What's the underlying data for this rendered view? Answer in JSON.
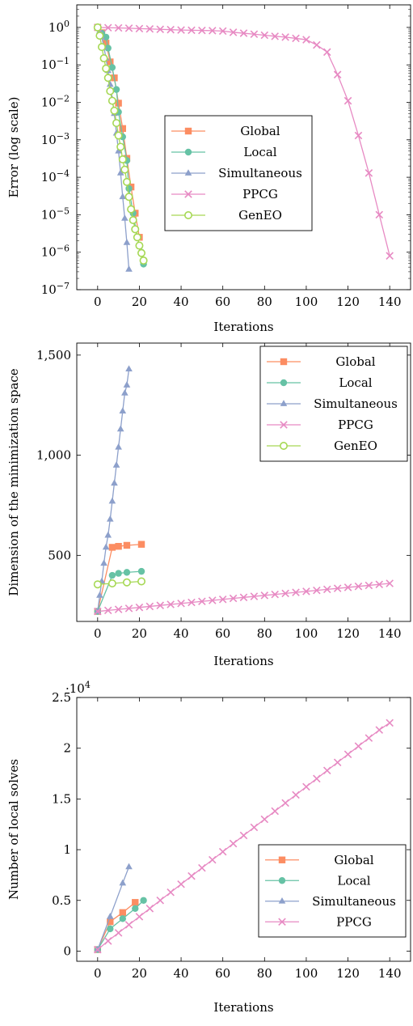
{
  "colors": {
    "global": "#fc8d62",
    "local": "#66c2a5",
    "simultaneous": "#8da0cb",
    "ppcg": "#e78ac3",
    "geneo": "#a6d854"
  },
  "chart_data": [
    {
      "type": "line",
      "yscale": "log",
      "xlabel": "Iterations",
      "ylabel": "Error (log scale)",
      "xlim": [
        -10,
        150
      ],
      "ylim": [
        1e-07,
        4
      ],
      "xticks": [
        0,
        20,
        40,
        60,
        80,
        100,
        120,
        140
      ],
      "xtick_labels": [
        "0",
        "20",
        "40",
        "60",
        "80",
        "100",
        "120",
        "140"
      ],
      "yticks": [
        1,
        0.1,
        0.01,
        0.001,
        0.0001,
        1e-05,
        1e-06,
        1e-07
      ],
      "ytick_base": "10",
      "ytick_exponents": [
        "0",
        "−1",
        "−2",
        "−3",
        "−4",
        "−5",
        "−6",
        "−7"
      ],
      "legend_position": "center",
      "series": [
        {
          "name": "Global",
          "key": "global",
          "marker": "square",
          "x": [
            0,
            2,
            4,
            6,
            8,
            10,
            12,
            14,
            16,
            18,
            20
          ],
          "y": [
            1,
            0.72,
            0.38,
            0.12,
            0.045,
            0.0095,
            0.002,
            0.00032,
            5.5e-05,
            1.1e-05,
            2.5e-06
          ]
        },
        {
          "name": "Local",
          "key": "local",
          "marker": "circle",
          "x": [
            0,
            2,
            4,
            5,
            7,
            9,
            10,
            12,
            14,
            15,
            17,
            19,
            21,
            22
          ],
          "y": [
            1,
            0.7,
            0.55,
            0.28,
            0.085,
            0.022,
            0.0055,
            0.0012,
            0.00028,
            5e-05,
            1.1e-05,
            2.5e-06,
            1e-06,
            4.8e-07
          ]
        },
        {
          "name": "Simultaneous",
          "key": "simultaneous",
          "marker": "triangle",
          "x": [
            0,
            1,
            2,
            3,
            4,
            5,
            6,
            7,
            8,
            9,
            10,
            11,
            12,
            13,
            14,
            15
          ],
          "y": [
            1,
            0.8,
            0.55,
            0.3,
            0.15,
            0.07,
            0.03,
            0.012,
            0.005,
            0.0015,
            0.0005,
            0.00013,
            3e-05,
            8e-06,
            1.8e-06,
            3.5e-07
          ]
        },
        {
          "name": "PPCG",
          "key": "ppcg",
          "marker": "cross",
          "x": [
            0,
            5,
            10,
            15,
            20,
            25,
            30,
            35,
            40,
            45,
            50,
            55,
            60,
            65,
            70,
            75,
            80,
            85,
            90,
            95,
            100,
            105,
            110,
            115,
            120,
            125,
            130,
            135,
            140
          ],
          "y": [
            1,
            0.98,
            0.97,
            0.95,
            0.93,
            0.91,
            0.89,
            0.87,
            0.85,
            0.84,
            0.83,
            0.82,
            0.8,
            0.74,
            0.7,
            0.66,
            0.62,
            0.58,
            0.55,
            0.51,
            0.47,
            0.34,
            0.22,
            0.055,
            0.011,
            0.0013,
            0.00013,
            1e-05,
            8e-07
          ]
        },
        {
          "name": "GenEO",
          "key": "geneo",
          "marker": "ocircle",
          "x": [
            0,
            1,
            2,
            3,
            4,
            5,
            6,
            7,
            8,
            9,
            10,
            11,
            12,
            13,
            14,
            15,
            16,
            17,
            18,
            19,
            20,
            21,
            22
          ],
          "y": [
            1,
            0.6,
            0.3,
            0.15,
            0.08,
            0.045,
            0.02,
            0.011,
            0.006,
            0.0028,
            0.0013,
            0.00065,
            0.0003,
            0.00016,
            7.5e-05,
            3e-05,
            1.4e-05,
            7.2e-06,
            4.1e-06,
            2.5e-06,
            1.5e-06,
            9.5e-07,
            6e-07
          ]
        }
      ]
    },
    {
      "type": "line",
      "yscale": "linear",
      "xlabel": "Iterations",
      "ylabel": "Dimension of the minimization space",
      "xlim": [
        -10,
        150
      ],
      "ylim": [
        170,
        1560
      ],
      "xticks": [
        0,
        20,
        40,
        60,
        80,
        100,
        120,
        140
      ],
      "xtick_labels": [
        "0",
        "20",
        "40",
        "60",
        "80",
        "100",
        "120",
        "140"
      ],
      "yticks": [
        500,
        1000,
        1500
      ],
      "ytick_labels": [
        "500",
        "1,000",
        "1,500"
      ],
      "legend_position": "top-right",
      "series": [
        {
          "name": "Global",
          "key": "global",
          "marker": "square",
          "x": [
            0,
            7,
            10,
            14,
            21
          ],
          "y": [
            220,
            540,
            545,
            550,
            555
          ]
        },
        {
          "name": "Local",
          "key": "local",
          "marker": "circle",
          "x": [
            0,
            7,
            10,
            14,
            21
          ],
          "y": [
            220,
            400,
            410,
            415,
            420
          ]
        },
        {
          "name": "Simultaneous",
          "key": "simultaneous",
          "marker": "triangle",
          "x": [
            0,
            1,
            2,
            3,
            4,
            5,
            6,
            7,
            8,
            9,
            10,
            11,
            12,
            13,
            14,
            15
          ],
          "y": [
            220,
            300,
            370,
            460,
            540,
            600,
            680,
            770,
            860,
            950,
            1040,
            1130,
            1220,
            1310,
            1350,
            1430
          ]
        },
        {
          "name": "PPCG",
          "key": "ppcg",
          "marker": "cross",
          "x": [
            0,
            5,
            10,
            15,
            20,
            25,
            30,
            35,
            40,
            45,
            50,
            55,
            60,
            65,
            70,
            75,
            80,
            85,
            90,
            95,
            100,
            105,
            110,
            115,
            120,
            125,
            130,
            135,
            140
          ],
          "y": [
            220,
            225,
            230,
            235,
            240,
            245,
            250,
            255,
            260,
            265,
            270,
            275,
            280,
            285,
            290,
            295,
            300,
            305,
            310,
            315,
            320,
            325,
            330,
            335,
            340,
            345,
            350,
            355,
            360
          ]
        },
        {
          "name": "GenEO",
          "key": "geneo",
          "marker": "ocircle",
          "x": [
            0,
            7,
            14,
            21
          ],
          "y": [
            355,
            360,
            365,
            370
          ]
        }
      ]
    },
    {
      "type": "line",
      "yscale": "linear",
      "xlabel": "Iterations",
      "ylabel": "Number of local solves",
      "y_multiplier_base": "·10",
      "y_multiplier_exponent": "4",
      "xlim": [
        -10,
        150
      ],
      "ylim": [
        -1000,
        25000
      ],
      "xticks": [
        0,
        20,
        40,
        60,
        80,
        100,
        120,
        140
      ],
      "xtick_labels": [
        "0",
        "20",
        "40",
        "60",
        "80",
        "100",
        "120",
        "140"
      ],
      "yticks": [
        0,
        5000,
        10000,
        15000,
        20000,
        25000
      ],
      "ytick_labels": [
        "0",
        "0.5",
        "1",
        "1.5",
        "2",
        "2.5"
      ],
      "legend_position": "bottom-right",
      "series": [
        {
          "name": "Global",
          "key": "global",
          "marker": "square",
          "x": [
            0,
            6,
            12,
            18
          ],
          "y": [
            150,
            2900,
            3800,
            4800
          ]
        },
        {
          "name": "Local",
          "key": "local",
          "marker": "circle",
          "x": [
            0,
            6,
            12,
            18,
            22
          ],
          "y": [
            150,
            2200,
            3200,
            4200,
            5000
          ]
        },
        {
          "name": "Simultaneous",
          "key": "simultaneous",
          "marker": "triangle",
          "x": [
            0,
            6,
            12,
            15
          ],
          "y": [
            150,
            3400,
            6700,
            8300
          ]
        },
        {
          "name": "PPCG",
          "key": "ppcg",
          "marker": "cross",
          "x": [
            0,
            5,
            10,
            15,
            20,
            25,
            30,
            35,
            40,
            45,
            50,
            55,
            60,
            65,
            70,
            75,
            80,
            85,
            90,
            95,
            100,
            105,
            110,
            115,
            120,
            125,
            130,
            135,
            140
          ],
          "y": [
            150,
            1000,
            1800,
            2600,
            3400,
            4200,
            5000,
            5800,
            6600,
            7400,
            8200,
            9000,
            9800,
            10600,
            11400,
            12200,
            13000,
            13800,
            14600,
            15400,
            16200,
            17000,
            17800,
            18600,
            19400,
            20200,
            21000,
            21800,
            22500
          ]
        }
      ]
    }
  ]
}
